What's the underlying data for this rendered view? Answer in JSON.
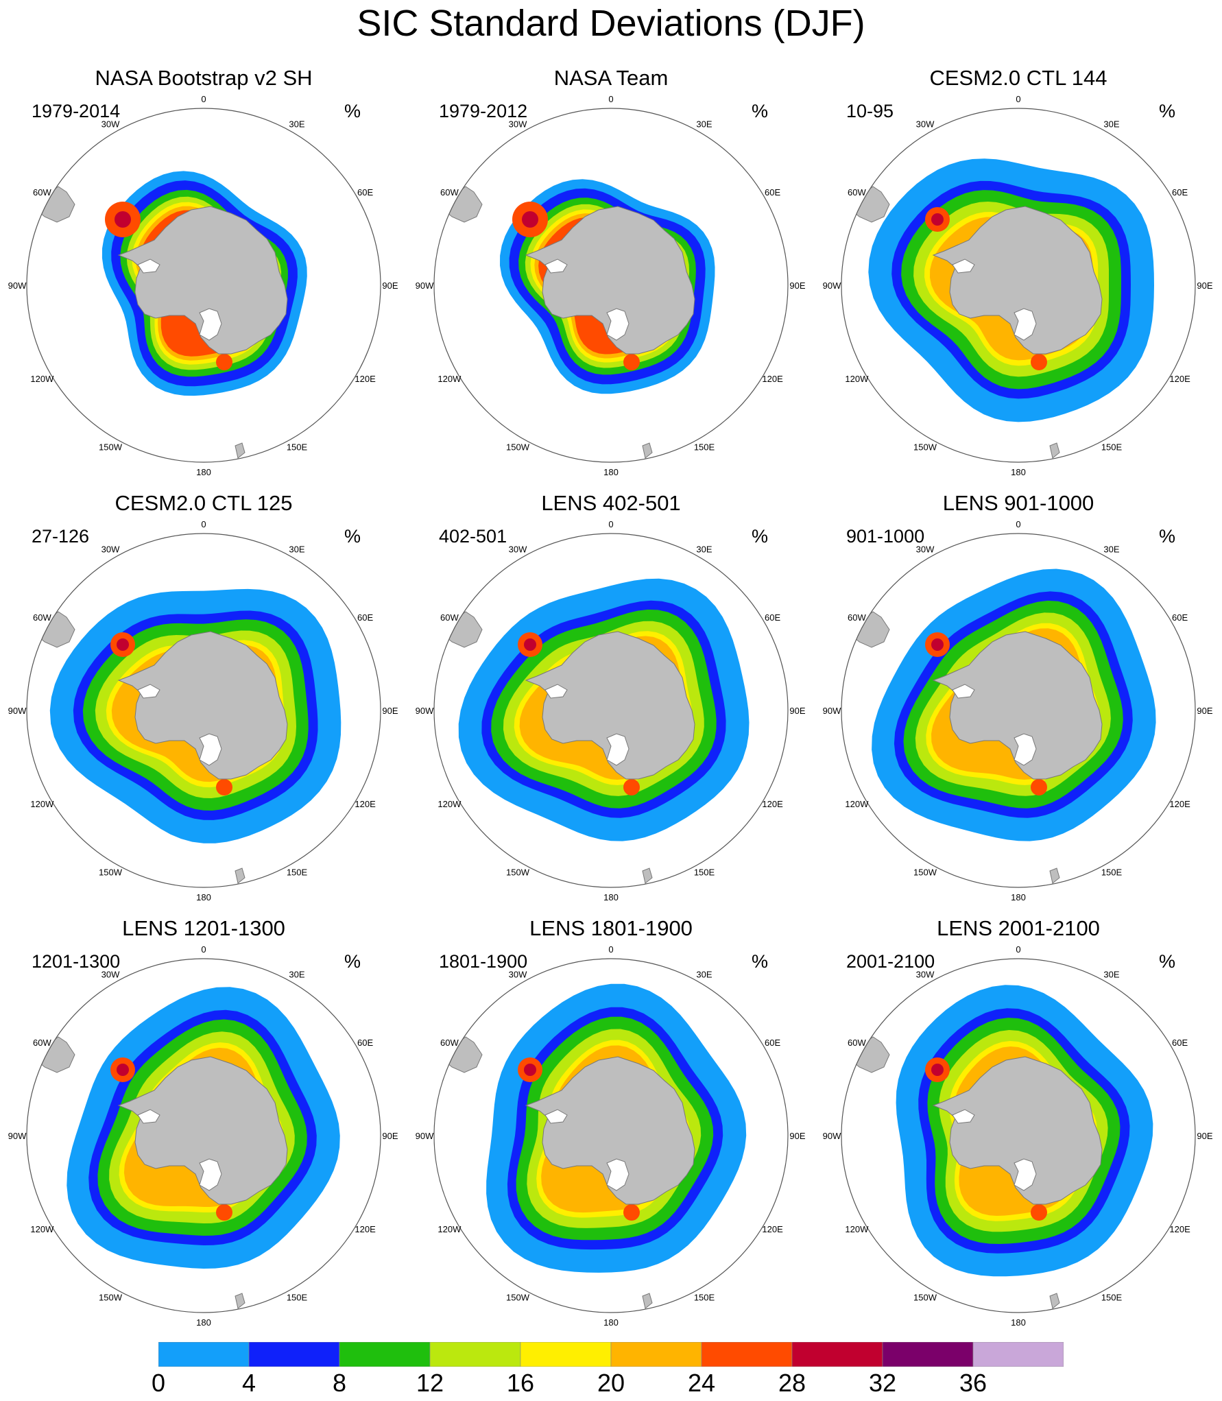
{
  "title": "SIC Standard Deviations (DJF)",
  "units_label": "%",
  "lon_labels": [
    "0",
    "30E",
    "60E",
    "90E",
    "120E",
    "150E",
    "180",
    "150W",
    "120W",
    "90W",
    "60W",
    "30W"
  ],
  "panels": [
    {
      "title": "NASA Bootstrap v2 SH",
      "period": "1979-2014",
      "units": "%"
    },
    {
      "title": "NASA Team",
      "period": "1979-2012",
      "units": "%"
    },
    {
      "title": "CESM2.0 CTL 144",
      "period": "10-95",
      "units": "%"
    },
    {
      "title": "CESM2.0 CTL 125",
      "period": "27-126",
      "units": "%"
    },
    {
      "title": "LENS 402-501",
      "period": "402-501",
      "units": "%"
    },
    {
      "title": "LENS 901-1000",
      "period": "901-1000",
      "units": "%"
    },
    {
      "title": "LENS 1201-1300",
      "period": "1201-1300",
      "units": "%"
    },
    {
      "title": "LENS 1801-1900",
      "period": "1801-1900",
      "units": "%"
    },
    {
      "title": "LENS 2001-2100",
      "period": "2001-2100",
      "units": "%"
    }
  ],
  "colorbar": {
    "labels": [
      "0",
      "4",
      "8",
      "12",
      "16",
      "20",
      "24",
      "28",
      "32",
      "36"
    ],
    "colors": [
      "#139ffa",
      "#0f21fa",
      "#1fbf0d",
      "#bbe80e",
      "#ffef00",
      "#ffb400",
      "#ff4b00",
      "#c1002f",
      "#7b006a",
      "#c9a7d9"
    ]
  },
  "colors": {
    "land": "#bebebe",
    "ice_shelf": "#ffffff",
    "ring": "#555555"
  }
}
